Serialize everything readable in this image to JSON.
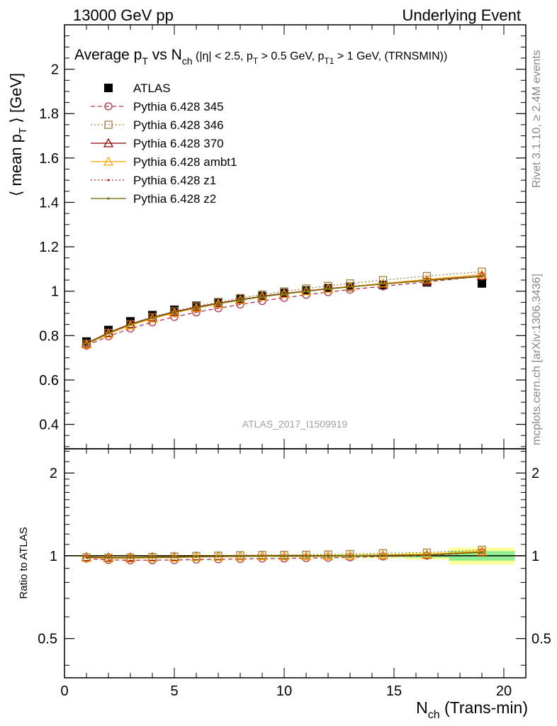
{
  "header": {
    "left": "13000 GeV pp",
    "right": "Underlying Event"
  },
  "side_labels": {
    "rivet": "Rivet 3.1.10, ≥ 2.4M events",
    "mcplots": "mcplots.cern.ch [arXiv:1306.3436]"
  },
  "chart_data": [
    {
      "type": "scatter",
      "title_parts": {
        "p1": "Average p",
        "p1sub": "T",
        "p2": " vs N",
        "p2sub": "ch",
        "p3": " (|η| < 2.5, p",
        "p3sub": "T",
        "p4": " > 0.5 GeV, p",
        "p4sub": "T1",
        "p5": " > 1 GeV, (TRNSMIN))"
      },
      "ylabel_parts": {
        "main": "⟨ mean p",
        "sub": "T",
        "end": " ⟩ [GeV]"
      },
      "watermark": "ATLAS_2017_I1509919",
      "xlim": [
        0,
        21
      ],
      "ylim": [
        0.29,
        2.2
      ],
      "yticks": [
        0.4,
        0.6,
        0.8,
        1,
        1.2,
        1.4,
        1.6,
        1.8,
        2
      ],
      "ytick_labels": [
        "0.4",
        "0.6",
        "0.8",
        "1",
        "1.2",
        "1.4",
        "1.6",
        "1.8",
        "2"
      ],
      "x": [
        1,
        2,
        3,
        4,
        5,
        6,
        7,
        8,
        9,
        10,
        11,
        12,
        13,
        14.5,
        16.5,
        19
      ],
      "series": [
        {
          "name": "ATLAS",
          "color": "#000000",
          "marker": "square-filled",
          "line": "none",
          "values": [
            0.773,
            0.825,
            0.864,
            0.892,
            0.916,
            0.934,
            0.95,
            0.965,
            0.978,
            0.992,
            1.003,
            1.013,
            1.02,
            1.028,
            1.04,
            1.035
          ]
        },
        {
          "name": "Pythia 6.428 345",
          "color": "#b03048",
          "marker": "circle-open",
          "line": "dashed",
          "values": [
            0.755,
            0.797,
            0.832,
            0.86,
            0.884,
            0.905,
            0.923,
            0.94,
            0.956,
            0.97,
            0.984,
            0.996,
            1.007,
            1.022,
            1.042,
            1.067
          ]
        },
        {
          "name": "Pythia 6.428 346",
          "color": "#a08040",
          "marker": "square-open",
          "line": "dotted",
          "values": [
            0.762,
            0.812,
            0.851,
            0.883,
            0.91,
            0.932,
            0.951,
            0.969,
            0.985,
            0.999,
            1.012,
            1.024,
            1.035,
            1.05,
            1.068,
            1.088
          ]
        },
        {
          "name": "Pythia 6.428 370",
          "color": "#8b0000",
          "marker": "triangle-open",
          "line": "solid",
          "values": [
            0.765,
            0.813,
            0.852,
            0.882,
            0.907,
            0.928,
            0.946,
            0.962,
            0.977,
            0.99,
            1.001,
            1.012,
            1.021,
            1.034,
            1.05,
            1.068
          ]
        },
        {
          "name": "Pythia 6.428 ambt1",
          "color": "#ffa500",
          "marker": "triangle-open",
          "line": "solid",
          "values": [
            0.76,
            0.808,
            0.846,
            0.877,
            0.902,
            0.924,
            0.943,
            0.96,
            0.975,
            0.988,
            1.0,
            1.011,
            1.021,
            1.035,
            1.053,
            1.075
          ]
        },
        {
          "name": "Pythia 6.428 z1",
          "color": "#d02020",
          "marker": "dot",
          "line": "dotted",
          "values": [
            0.764,
            0.812,
            0.851,
            0.881,
            0.906,
            0.927,
            0.945,
            0.961,
            0.976,
            0.989,
            1.0,
            1.011,
            1.02,
            1.033,
            1.049,
            1.067
          ]
        },
        {
          "name": "Pythia 6.428 z2",
          "color": "#6b6b00",
          "marker": "dot",
          "line": "solid",
          "values": [
            0.763,
            0.811,
            0.85,
            0.88,
            0.905,
            0.926,
            0.944,
            0.96,
            0.975,
            0.988,
            0.999,
            1.01,
            1.019,
            1.032,
            1.048,
            1.066
          ]
        }
      ]
    },
    {
      "type": "scatter",
      "ylabel": "Ratio to ATLAS",
      "xlabel_parts": {
        "main": "N",
        "sub": "ch",
        "end": " (Trans-min)"
      },
      "xlim": [
        0,
        21
      ],
      "xticks": [
        0,
        5,
        10,
        15,
        20
      ],
      "xtick_labels": [
        "0",
        "5",
        "10",
        "15",
        "20"
      ],
      "ylim": [
        0.36,
        2.45
      ],
      "ylog": true,
      "yticks": [
        0.5,
        1,
        2
      ],
      "ytick_labels": [
        "0.5",
        "1",
        "2"
      ],
      "bands": [
        {
          "x": [
            0.5,
            1.5,
            2.5,
            3.5,
            4.5,
            5.5,
            6.5,
            7.5,
            8.5,
            9.5,
            10.5,
            11.5,
            12.5,
            13.5,
            15.5,
            17.5,
            20.5
          ],
          "stat": [
            0.004,
            0.004,
            0.004,
            0.004,
            0.004,
            0.004,
            0.005,
            0.005,
            0.005,
            0.006,
            0.006,
            0.007,
            0.008,
            0.01,
            0.015,
            0.04
          ],
          "total": [
            0.008,
            0.008,
            0.008,
            0.008,
            0.008,
            0.009,
            0.009,
            0.01,
            0.01,
            0.011,
            0.012,
            0.013,
            0.015,
            0.02,
            0.03,
            0.07
          ],
          "stat_color": "#90ee90",
          "total_color": "#ffff99"
        }
      ]
    }
  ]
}
